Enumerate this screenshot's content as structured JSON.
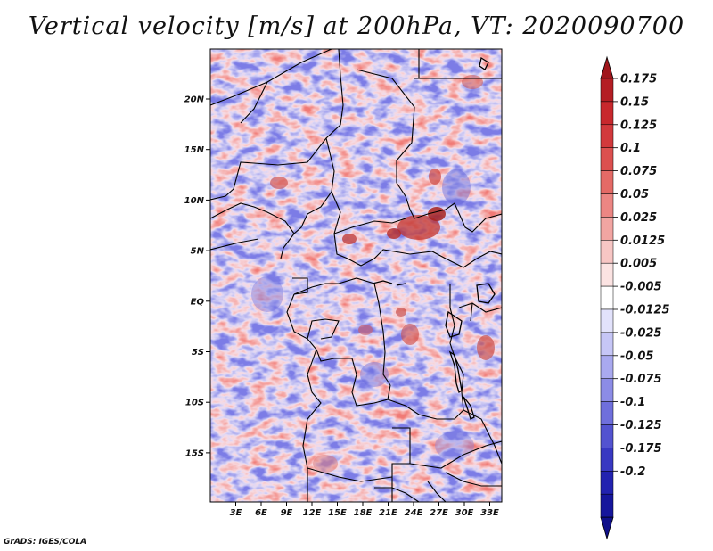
{
  "title": "Vertical velocity [m/s] at 200hPa, VT: 2020090700",
  "footer": "GrADS: IGES/COLA",
  "lat_ticks": [
    "20N",
    "15N",
    "10N",
    "5N",
    "EQ",
    "5S",
    "10S",
    "15S"
  ],
  "lon_ticks": [
    "3E",
    "6E",
    "9E",
    "12E",
    "15E",
    "18E",
    "21E",
    "24E",
    "27E",
    "30E",
    "33E"
  ],
  "colorbar": {
    "labels": [
      "0.175",
      "0.15",
      "0.125",
      "0.1",
      "0.075",
      "0.05",
      "0.025",
      "0.0125",
      "0.005",
      "-0.005",
      "-0.0125",
      "-0.025",
      "-0.05",
      "-0.075",
      "-0.1",
      "-0.125",
      "-0.175",
      "-0.2"
    ],
    "colors": [
      "#b41e24",
      "#c8282d",
      "#d2393c",
      "#dc504f",
      "#e46a66",
      "#ec8683",
      "#f2a5a2",
      "#f7c6c4",
      "#fbe3e2",
      "#ffffff",
      "#e2e2fb",
      "#c6c6f6",
      "#a9a9ef",
      "#8c8ce6",
      "#6f6fdc",
      "#5353d0",
      "#3838c2",
      "#2222b0",
      "#16169c"
    ],
    "top_color": "#a0161c",
    "bottom_color": "#10108a"
  }
}
